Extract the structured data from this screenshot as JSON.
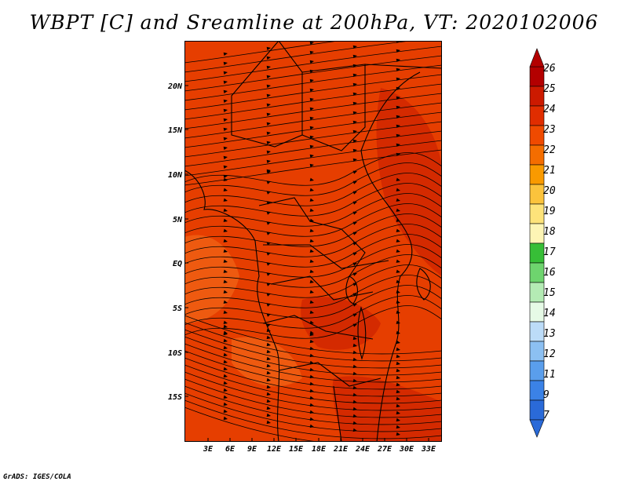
{
  "title": "WBPT [C] and Sreamline at 200hPa, VT: 2020102006",
  "credit": "GrADS: IGES/COLA",
  "latitude_labels": [
    "20N",
    "15N",
    "10N",
    "5N",
    "EQ",
    "5S",
    "10S",
    "15S"
  ],
  "longitude_labels": [
    "3E",
    "6E",
    "9E",
    "12E",
    "15E",
    "18E",
    "21E",
    "24E",
    "27E",
    "30E",
    "33E"
  ],
  "colorbar": {
    "labels": [
      "26",
      "25",
      "24",
      "23",
      "22",
      "21",
      "20",
      "19",
      "18",
      "17",
      "16",
      "15",
      "14",
      "13",
      "12",
      "11",
      "9",
      "7"
    ],
    "colors": [
      "#b30000",
      "#cc1a00",
      "#e02d00",
      "#ef4a00",
      "#f46d00",
      "#f99a00",
      "#fbc33c",
      "#fde37a",
      "#fdf5b5",
      "#37be37",
      "#6ed46e",
      "#b4ebb4",
      "#e6fae6",
      "#bcdcf8",
      "#8cc0f2",
      "#5a9eec",
      "#3b82e6",
      "#2a6ad8"
    ]
  },
  "map": {
    "fill_main": "#e63e00",
    "fill_warm": "#d42a00",
    "fill_cool": "#ee5a10",
    "line_color": "#000000"
  }
}
